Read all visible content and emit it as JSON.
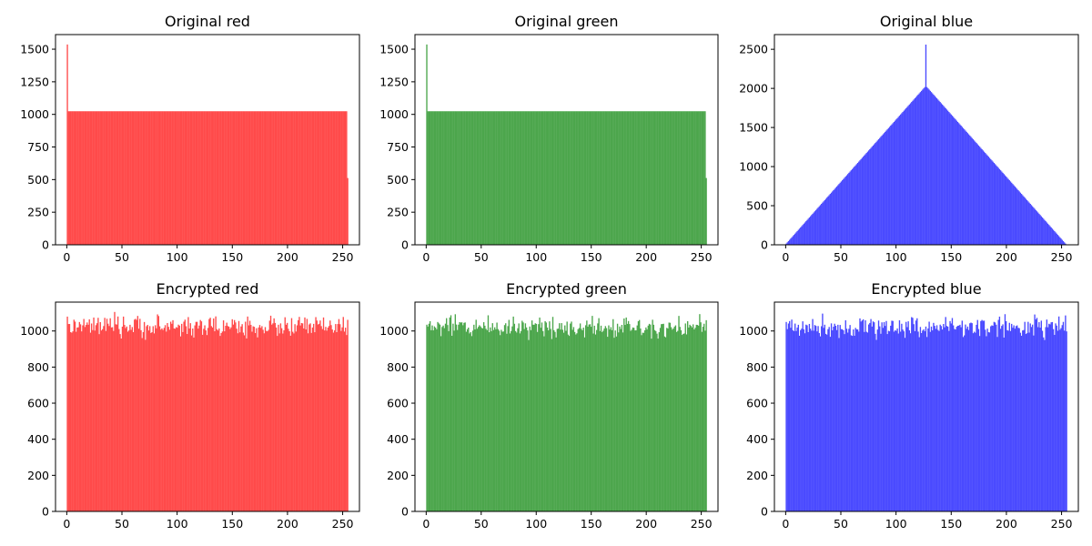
{
  "chart_data": [
    {
      "type": "bar",
      "title": "Original red",
      "color": "#ff4a4a",
      "x_domain": [
        -10.2,
        265.2
      ],
      "ylim": [
        0,
        1612
      ],
      "xticks": [
        0,
        50,
        100,
        150,
        200,
        250
      ],
      "yticks": [
        0,
        250,
        500,
        750,
        1000,
        1250,
        1500
      ],
      "bins": 256,
      "values": {
        "base": 1024,
        "overrides": {
          "0": 1536,
          "255": 512
        }
      }
    },
    {
      "type": "bar",
      "title": "Original green",
      "color": "#4ca64c",
      "x_domain": [
        -10.2,
        265.2
      ],
      "ylim": [
        0,
        1612
      ],
      "xticks": [
        0,
        50,
        100,
        150,
        200,
        250
      ],
      "yticks": [
        0,
        250,
        500,
        750,
        1000,
        1250,
        1500
      ],
      "bins": 256,
      "values": {
        "base": 1024,
        "overrides": {
          "0": 1536,
          "255": 512
        }
      }
    },
    {
      "type": "bar",
      "title": "Original blue",
      "color": "#4a4aff",
      "x_domain": [
        -10.2,
        265.2
      ],
      "ylim": [
        0,
        2688
      ],
      "xticks": [
        0,
        50,
        100,
        150,
        200,
        250
      ],
      "yticks": [
        0,
        500,
        1000,
        1500,
        2000,
        2500
      ],
      "bins": 256,
      "values": {
        "shape": "triangle",
        "peak_bin": 127,
        "peak_value": 2032,
        "spike_value": 2560
      }
    },
    {
      "type": "bar",
      "title": "Encrypted red",
      "color": "#ff4a4a",
      "x_domain": [
        -10.2,
        265.2
      ],
      "ylim": [
        0,
        1160
      ],
      "xticks": [
        0,
        50,
        100,
        150,
        200,
        250
      ],
      "yticks": [
        0,
        200,
        400,
        600,
        800,
        1000
      ],
      "bins": 256,
      "values": {
        "shape": "noise",
        "mean": 1024,
        "min": 950,
        "max": 1110
      }
    },
    {
      "type": "bar",
      "title": "Encrypted green",
      "color": "#4ca64c",
      "x_domain": [
        -10.2,
        265.2
      ],
      "ylim": [
        0,
        1160
      ],
      "xticks": [
        0,
        50,
        100,
        150,
        200,
        250
      ],
      "yticks": [
        0,
        200,
        400,
        600,
        800,
        1000
      ],
      "bins": 256,
      "values": {
        "shape": "noise",
        "mean": 1024,
        "min": 950,
        "max": 1110
      }
    },
    {
      "type": "bar",
      "title": "Encrypted blue",
      "color": "#4a4aff",
      "x_domain": [
        -10.2,
        265.2
      ],
      "ylim": [
        0,
        1160
      ],
      "xticks": [
        0,
        50,
        100,
        150,
        200,
        250
      ],
      "yticks": [
        0,
        200,
        400,
        600,
        800,
        1000
      ],
      "bins": 256,
      "values": {
        "shape": "noise",
        "mean": 1024,
        "min": 950,
        "max": 1110
      }
    }
  ]
}
